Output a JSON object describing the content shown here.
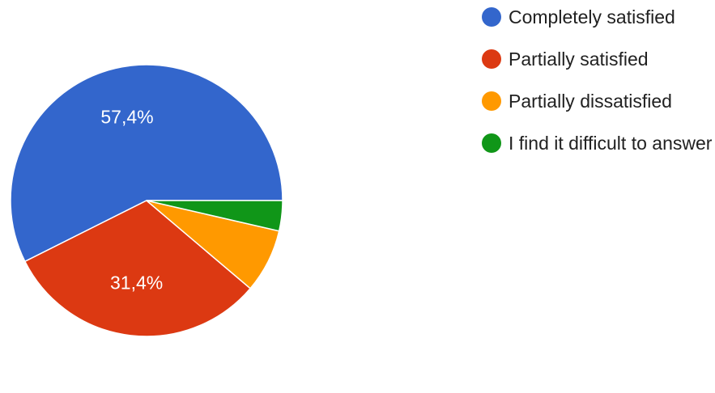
{
  "chart_data": {
    "type": "pie",
    "title": "",
    "start_angle_deg": 90,
    "direction": "counterclockwise",
    "categories": [
      "Completely satisfied",
      "Partially satisfied",
      "Partially dissatisfied",
      "I find it difficult to answer"
    ],
    "values": [
      57.4,
      31.4,
      7.6,
      3.6
    ],
    "value_labels": [
      "57,4%",
      "31,4%",
      "",
      ""
    ],
    "colors": [
      "#3366cc",
      "#dc3912",
      "#ff9900",
      "#109618"
    ],
    "legend": {
      "position": "right",
      "items": [
        {
          "label": "Completely satisfied",
          "color": "#3366cc"
        },
        {
          "label": "Partially satisfied",
          "color": "#dc3912"
        },
        {
          "label": "Partially dissatisfied",
          "color": "#ff9900"
        },
        {
          "label": "I find it difficult to answer",
          "color": "#109618"
        }
      ]
    }
  }
}
